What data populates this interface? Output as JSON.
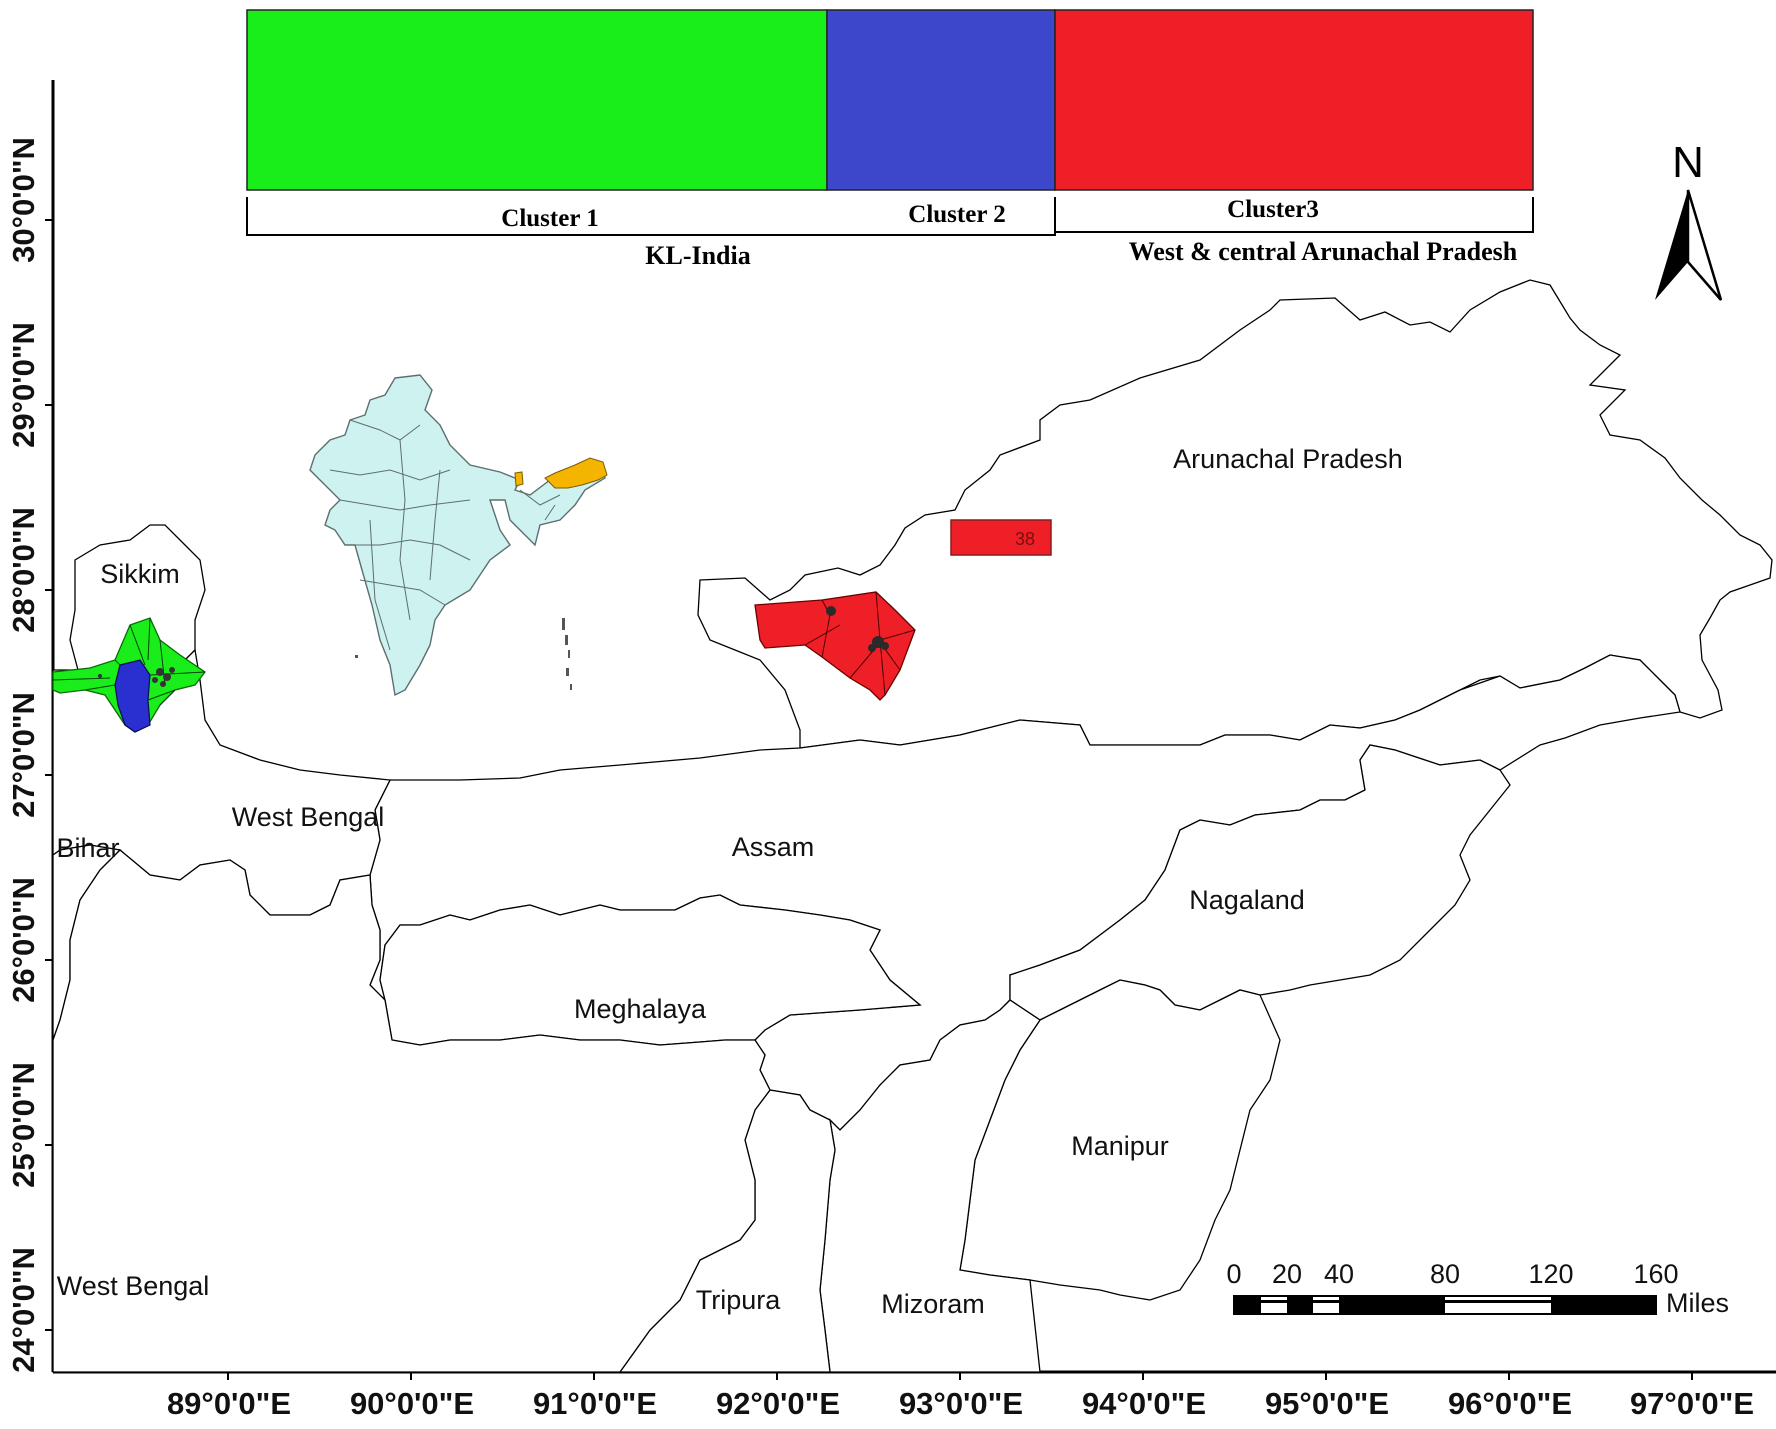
{
  "structure_bar": {
    "segments": [
      {
        "name": "Cluster 1",
        "color": "#1aee1a"
      },
      {
        "name": "Cluster 2",
        "color": "#3d47cc"
      },
      {
        "name": "Cluster3",
        "color": "#ee1f26"
      }
    ],
    "group_labels": [
      "KL-India",
      "West & central Arunachal Pradesh"
    ]
  },
  "north_arrow": {
    "label": "N"
  },
  "states": {
    "arunachal": "Arunachal Pradesh",
    "sikkim": "Sikkim",
    "west_bengal_north": "West Bengal",
    "bihar": "Bihar",
    "assam": "Assam",
    "nagaland": "Nagaland",
    "meghalaya": "Meghalaya",
    "manipur": "Manipur",
    "west_bengal_south": "West Bengal",
    "tripura": "Tripura",
    "mizoram": "Mizoram"
  },
  "markers": {
    "sample_38": "38"
  },
  "latitude_labels": [
    "30°0'0\"N",
    "29°0'0\"N",
    "28°0'0\"N",
    "27°0'0\"N",
    "26°0'0\"N",
    "25°0'0\"N",
    "24°0'0\"N"
  ],
  "longitude_labels": [
    "89°0'0\"E",
    "90°0'0\"E",
    "91°0'0\"E",
    "92°0'0\"E",
    "93°0'0\"E",
    "94°0'0\"E",
    "95°0'0\"E",
    "96°0'0\"E",
    "97°0'0\"E"
  ],
  "scale_bar": {
    "ticks": [
      "0",
      "20",
      "40",
      "80",
      "120",
      "160"
    ],
    "unit": "Miles"
  },
  "colors": {
    "cluster1": "#1aee1a",
    "cluster2": "#3d47cc",
    "cluster3": "#ee1f26",
    "india_fill": "#cdf2f0",
    "highlight_state": "#f5b400"
  }
}
